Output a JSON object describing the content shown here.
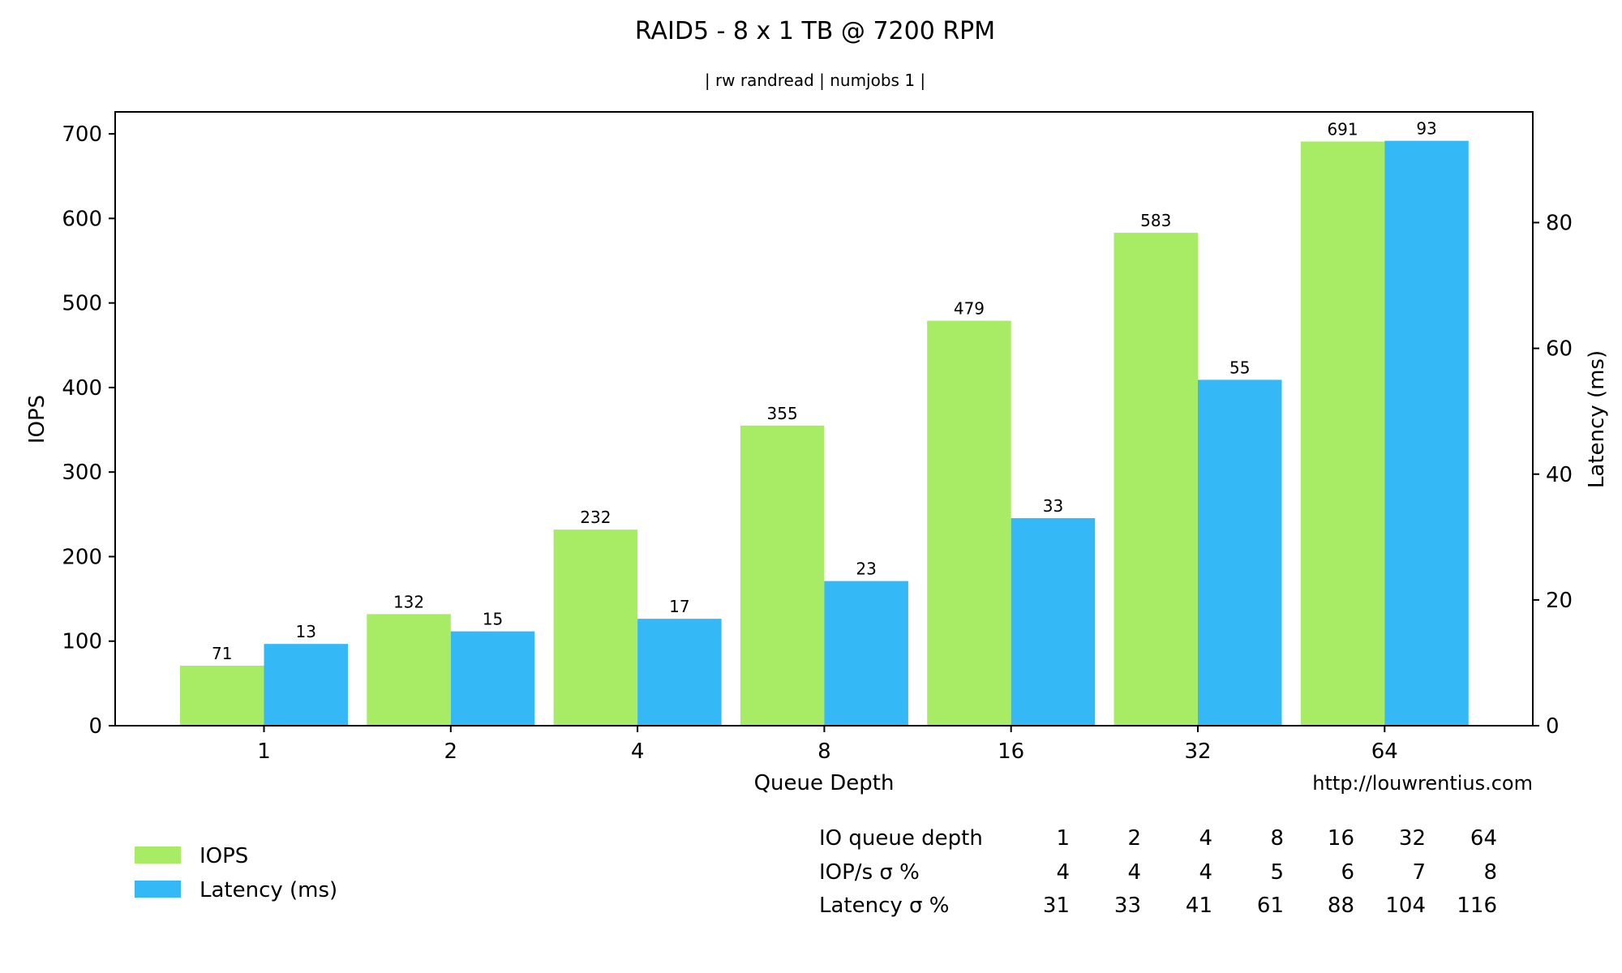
{
  "chart_data": {
    "type": "bar",
    "title": "RAID5 - 8 x 1 TB @ 7200 RPM",
    "subtitle": "| rw randread | numjobs 1 |",
    "xlabel": "Queue Depth",
    "ylabel": "IOPS",
    "ylabel_right": "Latency (ms)",
    "categories": [
      "1",
      "2",
      "4",
      "8",
      "16",
      "32",
      "64"
    ],
    "ylim": [
      0,
      726
    ],
    "ylim_right": [
      0,
      97.6
    ],
    "yticks": [
      0,
      100,
      200,
      300,
      400,
      500,
      600,
      700
    ],
    "yticks_right": [
      0,
      20,
      40,
      60,
      80
    ],
    "series": [
      {
        "name": "IOPS",
        "axis": "left",
        "color": "#a8ec65",
        "values": [
          71,
          132,
          232,
          355,
          479,
          583,
          691
        ]
      },
      {
        "name": "Latency (ms)",
        "axis": "right",
        "color": "#34b9f6",
        "values": [
          13,
          15,
          17,
          23,
          33,
          55,
          93
        ]
      }
    ],
    "grid": false,
    "legend_position": "bottom-left",
    "watermark": "http://louwrentius.com"
  },
  "stats_table": {
    "rows": [
      {
        "label": "IO queue depth",
        "values": [
          "1",
          "2",
          "4",
          "8",
          "16",
          "32",
          "64"
        ]
      },
      {
        "label": "IOP/s σ %",
        "values": [
          "4",
          "4",
          "4",
          "5",
          "6",
          "7",
          "8"
        ]
      },
      {
        "label": "Latency σ %",
        "values": [
          "31",
          "33",
          "41",
          "61",
          "88",
          "104",
          "116"
        ]
      }
    ]
  }
}
